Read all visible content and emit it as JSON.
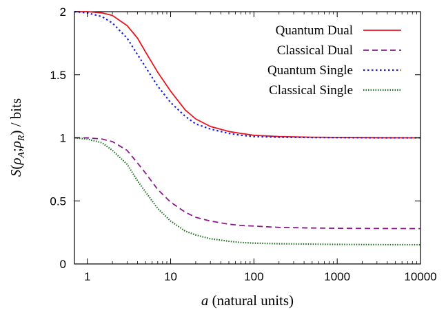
{
  "chart_data": {
    "type": "line",
    "title": "",
    "xlabel": "a (natural units)",
    "xlabel_var": "a",
    "xlabel_rest": " (natural units)",
    "ylabel": "S(ρA;ρR) / bits",
    "xscale": "log",
    "xlim": [
      0.7,
      10000
    ],
    "ylim": [
      0,
      2
    ],
    "xticks": [
      {
        "value": 1,
        "label": "1"
      },
      {
        "value": 10,
        "label": "10"
      },
      {
        "value": 100,
        "label": "100"
      },
      {
        "value": 1000,
        "label": "1000"
      },
      {
        "value": 10000,
        "label": "10000"
      }
    ],
    "yticks": [
      {
        "value": 0,
        "label": "0"
      },
      {
        "value": 0.5,
        "label": "0.5"
      },
      {
        "value": 1,
        "label": "1"
      },
      {
        "value": 1.5,
        "label": "1.5"
      },
      {
        "value": 2,
        "label": "2"
      }
    ],
    "grid": false,
    "legend_position": "top-right",
    "x": [
      0.7,
      1,
      1.5,
      2,
      3,
      4,
      5,
      7,
      10,
      15,
      20,
      30,
      50,
      70,
      100,
      200,
      500,
      1000,
      3000,
      10000
    ],
    "series": [
      {
        "name": "Quantum Dual",
        "color": "#e8141c",
        "dash": "solid",
        "values": [
          2.0,
          2.0,
          1.99,
          1.97,
          1.89,
          1.79,
          1.68,
          1.52,
          1.37,
          1.22,
          1.15,
          1.09,
          1.05,
          1.035,
          1.02,
          1.01,
          1.005,
          1.003,
          1.001,
          1.0
        ]
      },
      {
        "name": "Classical Dual",
        "color": "#8b1a8f",
        "dash": "dashed",
        "values": [
          1.0,
          1.0,
          0.99,
          0.97,
          0.9,
          0.8,
          0.72,
          0.59,
          0.49,
          0.41,
          0.37,
          0.34,
          0.315,
          0.305,
          0.3,
          0.29,
          0.285,
          0.283,
          0.281,
          0.28
        ]
      },
      {
        "name": "Quantum Single",
        "color": "#1c1ee0",
        "dash": "dotted",
        "values": [
          2.0,
          1.99,
          1.96,
          1.91,
          1.79,
          1.66,
          1.56,
          1.41,
          1.28,
          1.17,
          1.11,
          1.07,
          1.035,
          1.02,
          1.01,
          1.005,
          1.002,
          1.001,
          1.0,
          1.0
        ]
      },
      {
        "name": "Classical Single",
        "color": "#1a6e1a",
        "dash": "dotted-fine",
        "values": [
          1.0,
          0.99,
          0.96,
          0.9,
          0.79,
          0.66,
          0.57,
          0.44,
          0.34,
          0.26,
          0.23,
          0.2,
          0.18,
          0.17,
          0.165,
          0.16,
          0.157,
          0.155,
          0.153,
          0.152
        ]
      }
    ]
  }
}
